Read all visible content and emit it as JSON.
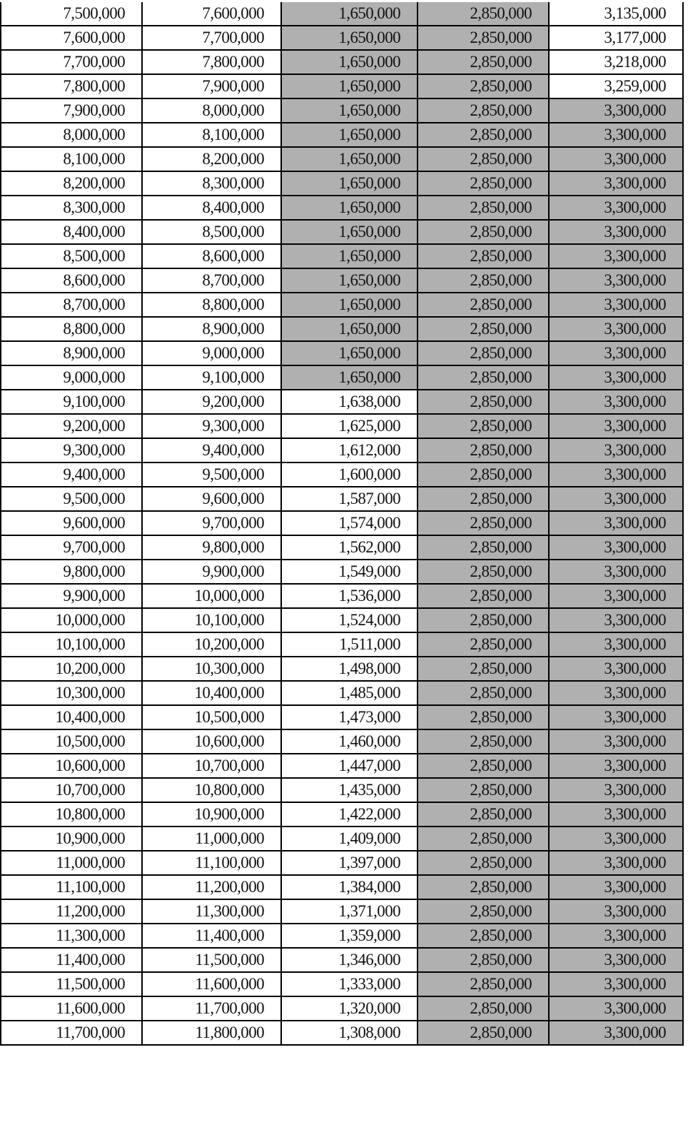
{
  "table": {
    "shade_color": "#b0b0b0",
    "rows": [
      {
        "cells": [
          "7,500,000",
          "7,600,000",
          "1,650,000",
          "2,850,000",
          "3,135,000"
        ],
        "shaded": [
          false,
          false,
          true,
          true,
          false
        ]
      },
      {
        "cells": [
          "7,600,000",
          "7,700,000",
          "1,650,000",
          "2,850,000",
          "3,177,000"
        ],
        "shaded": [
          false,
          false,
          true,
          true,
          false
        ]
      },
      {
        "cells": [
          "7,700,000",
          "7,800,000",
          "1,650,000",
          "2,850,000",
          "3,218,000"
        ],
        "shaded": [
          false,
          false,
          true,
          true,
          false
        ]
      },
      {
        "cells": [
          "7,800,000",
          "7,900,000",
          "1,650,000",
          "2,850,000",
          "3,259,000"
        ],
        "shaded": [
          false,
          false,
          true,
          true,
          false
        ]
      },
      {
        "cells": [
          "7,900,000",
          "8,000,000",
          "1,650,000",
          "2,850,000",
          "3,300,000"
        ],
        "shaded": [
          false,
          false,
          true,
          true,
          true
        ]
      },
      {
        "cells": [
          "8,000,000",
          "8,100,000",
          "1,650,000",
          "2,850,000",
          "3,300,000"
        ],
        "shaded": [
          false,
          false,
          true,
          true,
          true
        ]
      },
      {
        "cells": [
          "8,100,000",
          "8,200,000",
          "1,650,000",
          "2,850,000",
          "3,300,000"
        ],
        "shaded": [
          false,
          false,
          true,
          true,
          true
        ]
      },
      {
        "cells": [
          "8,200,000",
          "8,300,000",
          "1,650,000",
          "2,850,000",
          "3,300,000"
        ],
        "shaded": [
          false,
          false,
          true,
          true,
          true
        ]
      },
      {
        "cells": [
          "8,300,000",
          "8,400,000",
          "1,650,000",
          "2,850,000",
          "3,300,000"
        ],
        "shaded": [
          false,
          false,
          true,
          true,
          true
        ]
      },
      {
        "cells": [
          "8,400,000",
          "8,500,000",
          "1,650,000",
          "2,850,000",
          "3,300,000"
        ],
        "shaded": [
          false,
          false,
          true,
          true,
          true
        ]
      },
      {
        "cells": [
          "8,500,000",
          "8,600,000",
          "1,650,000",
          "2,850,000",
          "3,300,000"
        ],
        "shaded": [
          false,
          false,
          true,
          true,
          true
        ]
      },
      {
        "cells": [
          "8,600,000",
          "8,700,000",
          "1,650,000",
          "2,850,000",
          "3,300,000"
        ],
        "shaded": [
          false,
          false,
          true,
          true,
          true
        ]
      },
      {
        "cells": [
          "8,700,000",
          "8,800,000",
          "1,650,000",
          "2,850,000",
          "3,300,000"
        ],
        "shaded": [
          false,
          false,
          true,
          true,
          true
        ]
      },
      {
        "cells": [
          "8,800,000",
          "8,900,000",
          "1,650,000",
          "2,850,000",
          "3,300,000"
        ],
        "shaded": [
          false,
          false,
          true,
          true,
          true
        ]
      },
      {
        "cells": [
          "8,900,000",
          "9,000,000",
          "1,650,000",
          "2,850,000",
          "3,300,000"
        ],
        "shaded": [
          false,
          false,
          true,
          true,
          true
        ]
      },
      {
        "cells": [
          "9,000,000",
          "9,100,000",
          "1,650,000",
          "2,850,000",
          "3,300,000"
        ],
        "shaded": [
          false,
          false,
          true,
          true,
          true
        ]
      },
      {
        "cells": [
          "9,100,000",
          "9,200,000",
          "1,638,000",
          "2,850,000",
          "3,300,000"
        ],
        "shaded": [
          false,
          false,
          false,
          true,
          true
        ]
      },
      {
        "cells": [
          "9,200,000",
          "9,300,000",
          "1,625,000",
          "2,850,000",
          "3,300,000"
        ],
        "shaded": [
          false,
          false,
          false,
          true,
          true
        ]
      },
      {
        "cells": [
          "9,300,000",
          "9,400,000",
          "1,612,000",
          "2,850,000",
          "3,300,000"
        ],
        "shaded": [
          false,
          false,
          false,
          true,
          true
        ]
      },
      {
        "cells": [
          "9,400,000",
          "9,500,000",
          "1,600,000",
          "2,850,000",
          "3,300,000"
        ],
        "shaded": [
          false,
          false,
          false,
          true,
          true
        ]
      },
      {
        "cells": [
          "9,500,000",
          "9,600,000",
          "1,587,000",
          "2,850,000",
          "3,300,000"
        ],
        "shaded": [
          false,
          false,
          false,
          true,
          true
        ]
      },
      {
        "cells": [
          "9,600,000",
          "9,700,000",
          "1,574,000",
          "2,850,000",
          "3,300,000"
        ],
        "shaded": [
          false,
          false,
          false,
          true,
          true
        ]
      },
      {
        "cells": [
          "9,700,000",
          "9,800,000",
          "1,562,000",
          "2,850,000",
          "3,300,000"
        ],
        "shaded": [
          false,
          false,
          false,
          true,
          true
        ]
      },
      {
        "cells": [
          "9,800,000",
          "9,900,000",
          "1,549,000",
          "2,850,000",
          "3,300,000"
        ],
        "shaded": [
          false,
          false,
          false,
          true,
          true
        ]
      },
      {
        "cells": [
          "9,900,000",
          "10,000,000",
          "1,536,000",
          "2,850,000",
          "3,300,000"
        ],
        "shaded": [
          false,
          false,
          false,
          true,
          true
        ]
      },
      {
        "cells": [
          "10,000,000",
          "10,100,000",
          "1,524,000",
          "2,850,000",
          "3,300,000"
        ],
        "shaded": [
          false,
          false,
          false,
          true,
          true
        ]
      },
      {
        "cells": [
          "10,100,000",
          "10,200,000",
          "1,511,000",
          "2,850,000",
          "3,300,000"
        ],
        "shaded": [
          false,
          false,
          false,
          true,
          true
        ]
      },
      {
        "cells": [
          "10,200,000",
          "10,300,000",
          "1,498,000",
          "2,850,000",
          "3,300,000"
        ],
        "shaded": [
          false,
          false,
          false,
          true,
          true
        ]
      },
      {
        "cells": [
          "10,300,000",
          "10,400,000",
          "1,485,000",
          "2,850,000",
          "3,300,000"
        ],
        "shaded": [
          false,
          false,
          false,
          true,
          true
        ]
      },
      {
        "cells": [
          "10,400,000",
          "10,500,000",
          "1,473,000",
          "2,850,000",
          "3,300,000"
        ],
        "shaded": [
          false,
          false,
          false,
          true,
          true
        ]
      },
      {
        "cells": [
          "10,500,000",
          "10,600,000",
          "1,460,000",
          "2,850,000",
          "3,300,000"
        ],
        "shaded": [
          false,
          false,
          false,
          true,
          true
        ]
      },
      {
        "cells": [
          "10,600,000",
          "10,700,000",
          "1,447,000",
          "2,850,000",
          "3,300,000"
        ],
        "shaded": [
          false,
          false,
          false,
          true,
          true
        ]
      },
      {
        "cells": [
          "10,700,000",
          "10,800,000",
          "1,435,000",
          "2,850,000",
          "3,300,000"
        ],
        "shaded": [
          false,
          false,
          false,
          true,
          true
        ]
      },
      {
        "cells": [
          "10,800,000",
          "10,900,000",
          "1,422,000",
          "2,850,000",
          "3,300,000"
        ],
        "shaded": [
          false,
          false,
          false,
          true,
          true
        ]
      },
      {
        "cells": [
          "10,900,000",
          "11,000,000",
          "1,409,000",
          "2,850,000",
          "3,300,000"
        ],
        "shaded": [
          false,
          false,
          false,
          true,
          true
        ]
      },
      {
        "cells": [
          "11,000,000",
          "11,100,000",
          "1,397,000",
          "2,850,000",
          "3,300,000"
        ],
        "shaded": [
          false,
          false,
          false,
          true,
          true
        ]
      },
      {
        "cells": [
          "11,100,000",
          "11,200,000",
          "1,384,000",
          "2,850,000",
          "3,300,000"
        ],
        "shaded": [
          false,
          false,
          false,
          true,
          true
        ]
      },
      {
        "cells": [
          "11,200,000",
          "11,300,000",
          "1,371,000",
          "2,850,000",
          "3,300,000"
        ],
        "shaded": [
          false,
          false,
          false,
          true,
          true
        ]
      },
      {
        "cells": [
          "11,300,000",
          "11,400,000",
          "1,359,000",
          "2,850,000",
          "3,300,000"
        ],
        "shaded": [
          false,
          false,
          false,
          true,
          true
        ]
      },
      {
        "cells": [
          "11,400,000",
          "11,500,000",
          "1,346,000",
          "2,850,000",
          "3,300,000"
        ],
        "shaded": [
          false,
          false,
          false,
          true,
          true
        ]
      },
      {
        "cells": [
          "11,500,000",
          "11,600,000",
          "1,333,000",
          "2,850,000",
          "3,300,000"
        ],
        "shaded": [
          false,
          false,
          false,
          true,
          true
        ]
      },
      {
        "cells": [
          "11,600,000",
          "11,700,000",
          "1,320,000",
          "2,850,000",
          "3,300,000"
        ],
        "shaded": [
          false,
          false,
          false,
          true,
          true
        ]
      },
      {
        "cells": [
          "11,700,000",
          "11,800,000",
          "1,308,000",
          "2,850,000",
          "3,300,000"
        ],
        "shaded": [
          false,
          false,
          false,
          true,
          true
        ]
      }
    ]
  }
}
